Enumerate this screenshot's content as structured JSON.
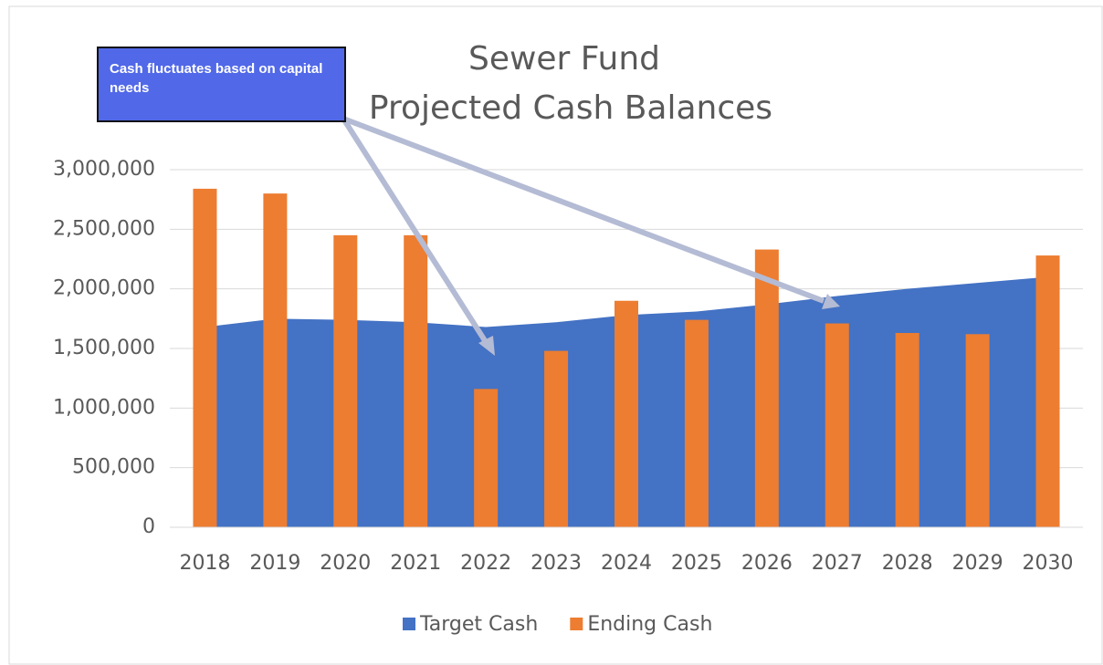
{
  "chart_data": {
    "type": "bar_area",
    "title": [
      "Sewer Fund",
      "Projected Cash Balances"
    ],
    "annotation": "Cash fluctuates based on capital needs",
    "categories": [
      "2018",
      "2019",
      "2020",
      "2021",
      "2022",
      "2023",
      "2024",
      "2025",
      "2026",
      "2027",
      "2028",
      "2029",
      "2030"
    ],
    "series": [
      {
        "name": "Target Cash",
        "type": "area",
        "color": "#4472c4",
        "values": [
          1680000,
          1750000,
          1740000,
          1720000,
          1680000,
          1720000,
          1780000,
          1810000,
          1870000,
          1940000,
          2000000,
          2050000,
          2100000
        ]
      },
      {
        "name": "Ending Cash",
        "type": "bar",
        "color": "#ed7d31",
        "values": [
          2840000,
          2800000,
          2450000,
          2450000,
          1160000,
          1480000,
          1900000,
          1740000,
          2330000,
          1710000,
          1630000,
          1620000,
          2280000
        ]
      }
    ],
    "ylim": [
      0,
      3000000
    ],
    "yticks": [
      0,
      {
        "value": 500000,
        "label": "500,000"
      },
      {
        "value": 1000000,
        "label": "1,000,000"
      },
      {
        "value": 1500000,
        "label": "1,500,000"
      },
      {
        "value": 2000000,
        "label": "2,000,000"
      },
      {
        "value": 2500000,
        "label": "2,500,000"
      },
      {
        "value": 3000000,
        "label": "3,000,000"
      }
    ],
    "grid": true,
    "legend": "bottom"
  }
}
